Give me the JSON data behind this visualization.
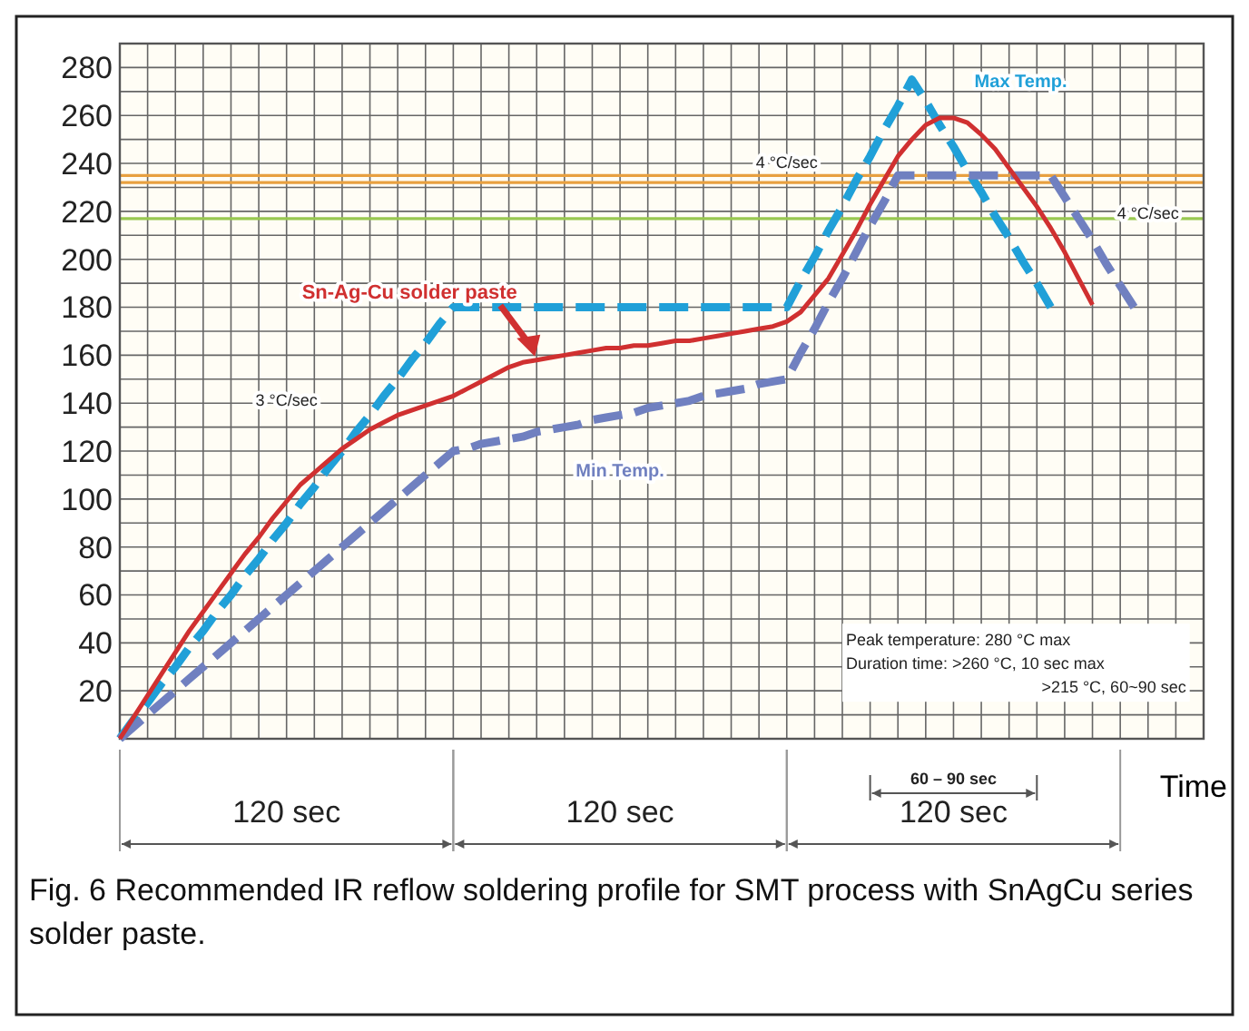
{
  "chart_data": {
    "type": "line",
    "title": "Fig. 6 Recommended IR reflow soldering profile for SMT process with SnAgCu series solder paste.",
    "xlabel": "Time",
    "categories": [
      null,
      null,
      null,
      null,
      null,
      null,
      null,
      null,
      null,
      null,
      null,
      null,
      null,
      null,
      null,
      null,
      null,
      null,
      null,
      null,
      null,
      null,
      null,
      null,
      null,
      null,
      null,
      null,
      null,
      null,
      null,
      null,
      null,
      null,
      null,
      null,
      null,
      null,
      null,
      null,
      null,
      null,
      null,
      null,
      null,
      null,
      null,
      null,
      null,
      null,
      null,
      null,
      null,
      null,
      null,
      null,
      null,
      null,
      null,
      null,
      null,
      null,
      null,
      null,
      null,
      null,
      null,
      null,
      null,
      null,
      null,
      null,
      null,
      null,
      null,
      null,
      null,
      null,
      null
    ],
    "ylim": [
      0,
      290
    ],
    "yticks": [
      {
        "value": 0,
        "label": null
      },
      {
        "value": 10,
        "label": null
      },
      20,
      {
        "value": 30,
        "label": null
      },
      40,
      {
        "value": 50,
        "label": null
      },
      60,
      {
        "value": 70,
        "label": null
      },
      80,
      {
        "value": 90,
        "label": null
      },
      100,
      {
        "value": 110,
        "label": null
      },
      120,
      {
        "value": 130,
        "label": null
      },
      140,
      {
        "value": 150,
        "label": null
      },
      160,
      {
        "value": 170,
        "label": null
      },
      180,
      {
        "value": 190,
        "label": null
      },
      200,
      {
        "value": 210,
        "label": null
      },
      220,
      {
        "value": 230,
        "label": null
      },
      240,
      {
        "value": 250,
        "label": null
      },
      260,
      {
        "value": 270,
        "label": null
      },
      280
    ],
    "grid": true,
    "series": [
      {
        "name": "Max Temp.",
        "color": "#20a0d8",
        "line_style": "dashed",
        "values": [
          0,
          8,
          15,
          23,
          30,
          38,
          45,
          53,
          60,
          68,
          75,
          83,
          90,
          98,
          105,
          113,
          120,
          128,
          135,
          143,
          150,
          158,
          165,
          173,
          180,
          180,
          180,
          180,
          180,
          180,
          180,
          180,
          180,
          180,
          180,
          180,
          180,
          180,
          180,
          180,
          180,
          180,
          180,
          180,
          180,
          180,
          180,
          180,
          180,
          191,
          201,
          212,
          222,
          233,
          243,
          254,
          264,
          275,
          266,
          256,
          247,
          237,
          228,
          218,
          209,
          199,
          190,
          180,
          null,
          null,
          null,
          null,
          null,
          null,
          null,
          null,
          null,
          null,
          null
        ]
      },
      {
        "name": "Min Temp.",
        "color": "#7080c0",
        "line_style": "dashed",
        "values": [
          0,
          5,
          10,
          15,
          20,
          25,
          30,
          35,
          40,
          45,
          50,
          55,
          60,
          65,
          70,
          75,
          80,
          85,
          90,
          95,
          100,
          105,
          110,
          115,
          120,
          121,
          123,
          124,
          125,
          126,
          128,
          129,
          130,
          131,
          133,
          134,
          135,
          136,
          138,
          139,
          140,
          141,
          143,
          144,
          145,
          146,
          148,
          149,
          150,
          161,
          171,
          182,
          192,
          203,
          214,
          224,
          235,
          235,
          235,
          235,
          235,
          235,
          235,
          235,
          235,
          235,
          235,
          235,
          226,
          217,
          208,
          198,
          189,
          180,
          null,
          null,
          null,
          null,
          null
        ]
      },
      {
        "name": "Sn-Ag-Cu solder paste",
        "color": "#d03030",
        "line_style": "solid",
        "values": [
          0,
          9,
          18,
          27,
          36,
          45,
          53,
          61,
          69,
          77,
          84,
          92,
          99,
          106,
          111,
          116,
          121,
          125,
          129,
          132,
          135,
          137,
          139,
          141,
          143,
          146,
          149,
          152,
          155,
          157,
          158,
          159,
          160,
          161,
          162,
          163,
          163,
          164,
          164,
          165,
          166,
          166,
          167,
          168,
          169,
          170,
          171,
          172,
          174,
          178,
          185,
          192,
          202,
          212,
          223,
          233,
          243,
          250,
          256,
          259,
          259,
          257,
          252,
          246,
          238,
          230,
          222,
          213,
          203,
          192,
          181,
          null,
          null,
          null,
          null,
          null,
          null,
          null,
          null
        ]
      }
    ],
    "ref_lines": [
      {
        "axis": "y",
        "value": 235,
        "color": "#e8a040"
      },
      {
        "axis": "y",
        "value": 232,
        "color": "#e8a040"
      },
      {
        "axis": "y",
        "value": 217,
        "color": "#98c850"
      }
    ],
    "annotations": [
      "3 °C/sec",
      "4 °C/sec",
      "4 °C/sec",
      "Peak temperature: 280 °C max",
      "Duration time: >260 °C, 10 sec max",
      ">215 °C, 60~90 sec",
      "120 sec",
      "120 sec",
      "120 sec",
      "60 – 90 sec"
    ]
  }
}
